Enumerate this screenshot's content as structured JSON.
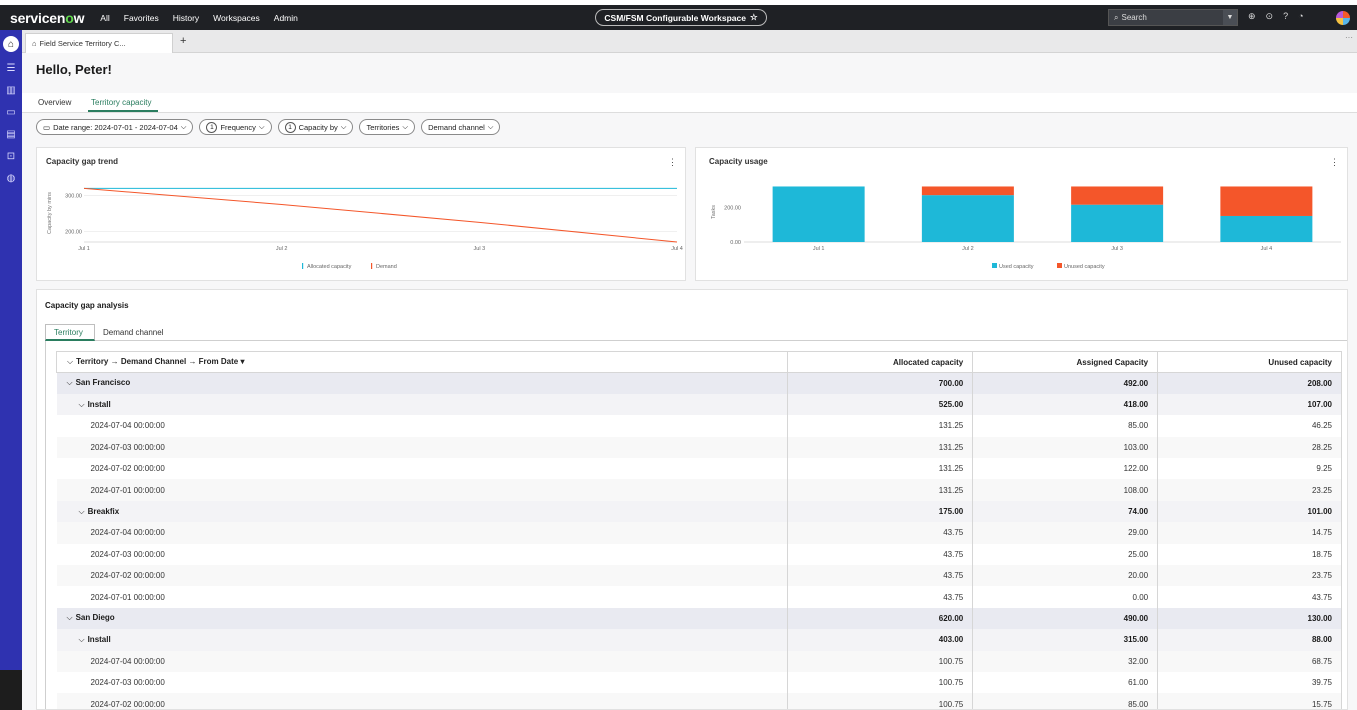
{
  "navbar": {
    "logo_text_pre": "servicen",
    "logo_text_o": "o",
    "logo_text_post": "w",
    "links": [
      "All",
      "Favorites",
      "History",
      "Workspaces",
      "Admin"
    ],
    "workspace_title": "CSM/FSM Configurable Workspace",
    "search_placeholder": "Search"
  },
  "tabstrip": {
    "active_tab_label": "Field Service Territory C..."
  },
  "page": {
    "greeting": "Hello, Peter!",
    "tabs": [
      "Overview",
      "Territory capacity"
    ],
    "active_tab": "Territory capacity"
  },
  "filters": {
    "date_range": "Date range: 2024-07-01 - 2024-07-04",
    "frequency_count": "1",
    "frequency_label": "Frequency",
    "capacity_by_count": "1",
    "capacity_by_label": "Capacity by",
    "territories_label": "Territories",
    "demand_channel_label": "Demand channel"
  },
  "gap_trend_chart": {
    "title": "Capacity gap trend",
    "ylabel": "Capacity by mins",
    "y_ticks": [
      "300.00",
      "200.00"
    ],
    "x_ticks": [
      "Jul 1",
      "Jul 2",
      "Jul 3",
      "Jul 4"
    ],
    "legend": [
      "Allocated capacity",
      "Demand"
    ],
    "colors": {
      "allocated": "#1eb8d8",
      "demand": "#f4562a"
    }
  },
  "usage_chart": {
    "title": "Capacity usage",
    "ylabel": "Tasks",
    "y_ticks": [
      "200.00",
      "0.00"
    ],
    "x_ticks": [
      "Jul 1",
      "Jul 2",
      "Jul 3",
      "Jul 4"
    ],
    "legend": [
      "Used capacity",
      "Unused capacity"
    ],
    "colors": {
      "used": "#1eb8d8",
      "unused": "#f4562a"
    }
  },
  "chart_data": [
    {
      "type": "line",
      "x": [
        "Jul 1",
        "Jul 2",
        "Jul 3",
        "Jul 4"
      ],
      "series": [
        {
          "name": "Allocated capacity",
          "values": [
            320,
            320,
            320,
            320
          ]
        },
        {
          "name": "Demand",
          "values": [
            320,
            275,
            225,
            170
          ]
        }
      ],
      "title": "Capacity gap trend",
      "ylabel": "Capacity by mins",
      "ylim": [
        170,
        335
      ]
    },
    {
      "type": "bar",
      "stacked": true,
      "categories": [
        "Jul 1",
        "Jul 2",
        "Jul 3",
        "Jul 4"
      ],
      "series": [
        {
          "name": "Used capacity",
          "values": [
            320,
            270,
            215,
            150
          ]
        },
        {
          "name": "Unused capacity",
          "values": [
            0,
            50,
            105,
            170
          ]
        }
      ],
      "title": "Capacity usage",
      "ylabel": "Tasks",
      "ylim": [
        0,
        340
      ]
    }
  ],
  "gap_analysis": {
    "title": "Capacity gap analysis",
    "tabs": [
      "Territory",
      "Demand channel"
    ],
    "columns": {
      "group": "Territory",
      "group2": "Demand Channel",
      "group3": "From Date",
      "allocated": "Allocated capacity",
      "assigned": "Assigned Capacity",
      "unused": "Unused capacity"
    },
    "rows": [
      {
        "level": 0,
        "label": "San Francisco",
        "allocated": "700.00",
        "assigned": "492.00",
        "unused": "208.00"
      },
      {
        "level": 1,
        "label": "Install",
        "allocated": "525.00",
        "assigned": "418.00",
        "unused": "107.00"
      },
      {
        "level": 2,
        "label": "2024-07-04 00:00:00",
        "allocated": "131.25",
        "assigned": "85.00",
        "unused": "46.25"
      },
      {
        "level": 2,
        "label": "2024-07-03 00:00:00",
        "allocated": "131.25",
        "assigned": "103.00",
        "unused": "28.25"
      },
      {
        "level": 2,
        "label": "2024-07-02 00:00:00",
        "allocated": "131.25",
        "assigned": "122.00",
        "unused": "9.25"
      },
      {
        "level": 2,
        "label": "2024-07-01 00:00:00",
        "allocated": "131.25",
        "assigned": "108.00",
        "unused": "23.25"
      },
      {
        "level": 1,
        "label": "Breakfix",
        "allocated": "175.00",
        "assigned": "74.00",
        "unused": "101.00"
      },
      {
        "level": 2,
        "label": "2024-07-04 00:00:00",
        "allocated": "43.75",
        "assigned": "29.00",
        "unused": "14.75"
      },
      {
        "level": 2,
        "label": "2024-07-03 00:00:00",
        "allocated": "43.75",
        "assigned": "25.00",
        "unused": "18.75"
      },
      {
        "level": 2,
        "label": "2024-07-02 00:00:00",
        "allocated": "43.75",
        "assigned": "20.00",
        "unused": "23.75"
      },
      {
        "level": 2,
        "label": "2024-07-01 00:00:00",
        "allocated": "43.75",
        "assigned": "0.00",
        "unused": "43.75"
      },
      {
        "level": 0,
        "label": "San Diego",
        "allocated": "620.00",
        "assigned": "490.00",
        "unused": "130.00"
      },
      {
        "level": 1,
        "label": "Install",
        "allocated": "403.00",
        "assigned": "315.00",
        "unused": "88.00"
      },
      {
        "level": 2,
        "label": "2024-07-04 00:00:00",
        "allocated": "100.75",
        "assigned": "32.00",
        "unused": "68.75"
      },
      {
        "level": 2,
        "label": "2024-07-03 00:00:00",
        "allocated": "100.75",
        "assigned": "61.00",
        "unused": "39.75"
      },
      {
        "level": 2,
        "label": "2024-07-02 00:00:00",
        "allocated": "100.75",
        "assigned": "85.00",
        "unused": "15.75"
      }
    ]
  }
}
